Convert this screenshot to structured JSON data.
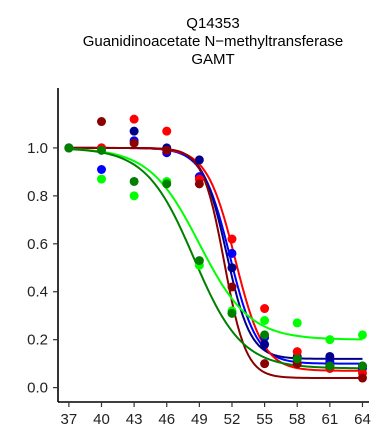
{
  "title_lines": [
    "Q14353",
    "Guanidinoacetate N−methyltransferase",
    "GAMT"
  ],
  "chart_data": {
    "type": "scatter",
    "title": "Q14353 Guanidinoacetate N−methyltransferase GAMT",
    "xlabel": "",
    "ylabel": "",
    "x_ticks": [
      "37",
      "40",
      "43",
      "46",
      "49",
      "52",
      "55",
      "58",
      "61",
      "64"
    ],
    "y_ticks": [
      "0.0",
      "0.2",
      "0.4",
      "0.6",
      "0.8",
      "1.0"
    ],
    "xlim": [
      36.0,
      64.6
    ],
    "ylim": [
      -0.06,
      1.25
    ],
    "grid": false,
    "legend": "none",
    "series": [
      {
        "color": "#0000ff",
        "x": [
          37,
          40,
          43,
          46,
          49,
          52,
          55,
          58,
          61,
          64
        ],
        "y": [
          1.0,
          0.91,
          1.03,
          0.98,
          0.88,
          0.56,
          0.21,
          0.12,
          0.11,
          0.08
        ],
        "fit": {
          "top": 1.0,
          "bottom": 0.1,
          "tm": 51.8,
          "slope": 1.25
        }
      },
      {
        "color": "#00008b",
        "x": [
          37,
          40,
          43,
          46,
          49,
          52,
          55,
          58,
          61,
          64
        ],
        "y": [
          1.0,
          1.0,
          1.07,
          1.0,
          0.95,
          0.5,
          0.18,
          0.13,
          0.13,
          0.09
        ],
        "fit": {
          "top": 1.0,
          "bottom": 0.12,
          "tm": 51.5,
          "slope": 1.1
        }
      },
      {
        "color": "#ff0000",
        "x": [
          37,
          40,
          43,
          46,
          49,
          52,
          55,
          58,
          61,
          64
        ],
        "y": [
          1.0,
          1.0,
          1.12,
          1.07,
          0.87,
          0.62,
          0.33,
          0.15,
          0.08,
          0.06
        ],
        "fit": {
          "top": 1.0,
          "bottom": 0.07,
          "tm": 52.3,
          "slope": 1.3
        }
      },
      {
        "color": "#8b0000",
        "x": [
          37,
          40,
          43,
          46,
          49,
          52,
          55,
          58,
          61,
          64
        ],
        "y": [
          1.0,
          1.11,
          1.02,
          0.99,
          0.85,
          0.42,
          0.1,
          0.1,
          0.09,
          0.04
        ],
        "fit": {
          "top": 1.0,
          "bottom": 0.04,
          "tm": 51.3,
          "slope": 1.0
        }
      },
      {
        "color": "#00ff00",
        "x": [
          37,
          40,
          43,
          46,
          49,
          52,
          55,
          58,
          61,
          64
        ],
        "y": [
          1.0,
          0.87,
          0.8,
          0.86,
          0.51,
          0.32,
          0.28,
          0.27,
          0.2,
          0.22
        ],
        "fit": {
          "top": 1.0,
          "bottom": 0.2,
          "tm": 49.0,
          "slope": 2.3
        }
      },
      {
        "color": "#008000",
        "x": [
          37,
          40,
          43,
          46,
          49,
          52,
          55,
          58,
          61,
          64
        ],
        "y": [
          1.0,
          0.99,
          0.86,
          0.85,
          0.53,
          0.31,
          0.22,
          0.12,
          0.09,
          0.09
        ],
        "fit": {
          "top": 1.0,
          "bottom": 0.08,
          "tm": 48.5,
          "slope": 2.2
        }
      }
    ]
  }
}
